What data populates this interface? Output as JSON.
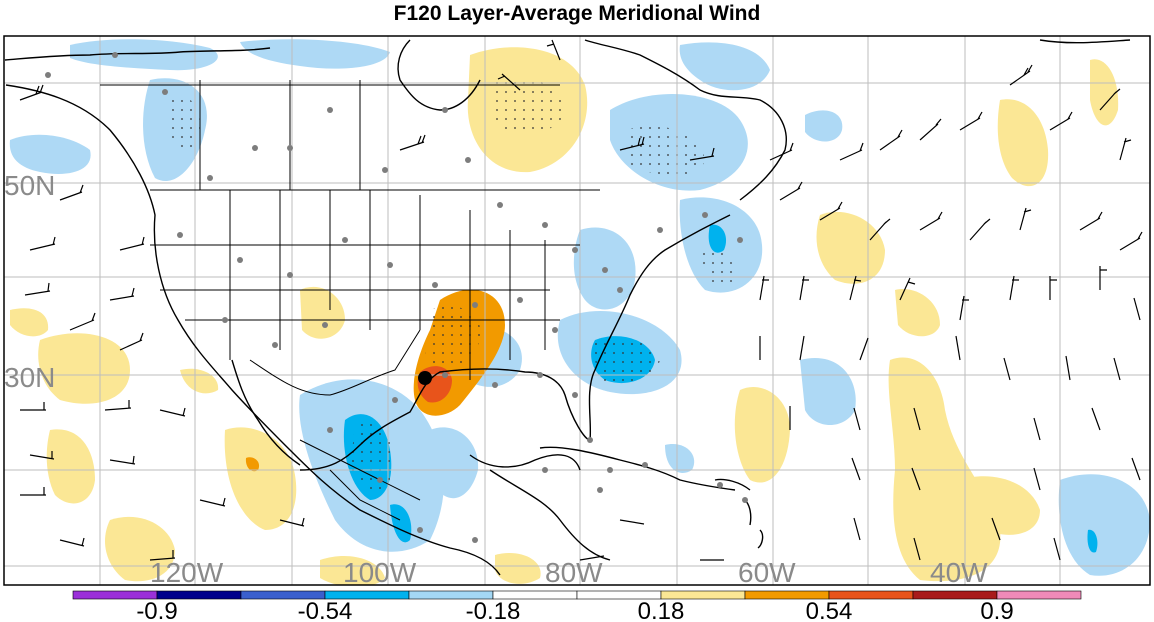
{
  "title": "F120 Layer-Average Meridional Wind",
  "map": {
    "lat_labels": [
      "50N",
      "30N"
    ],
    "lon_labels": [
      "120W",
      "100W",
      "80W",
      "60W",
      "40W"
    ],
    "marker": "storm-center"
  },
  "colorbar": {
    "tick_labels": [
      "-0.9",
      "-0.54",
      "-0.18",
      "0.18",
      "0.54",
      "0.9"
    ],
    "colors": [
      "#9b30d9",
      "#00008b",
      "#3a5fcd",
      "#00b2ee",
      "#a4d8f5",
      "#ffffff",
      "#ffffff",
      "#fbe795",
      "#f29a00",
      "#e8541b",
      "#a81b1b",
      "#f08ab8"
    ]
  },
  "colors": {
    "positive_light": "#fbe795",
    "positive_mid": "#f29a00",
    "positive_strong": "#e8541b",
    "negative_light": "#aed9f5",
    "negative_mid": "#00b2ee",
    "negative_strong": "#3a5fcd"
  }
}
